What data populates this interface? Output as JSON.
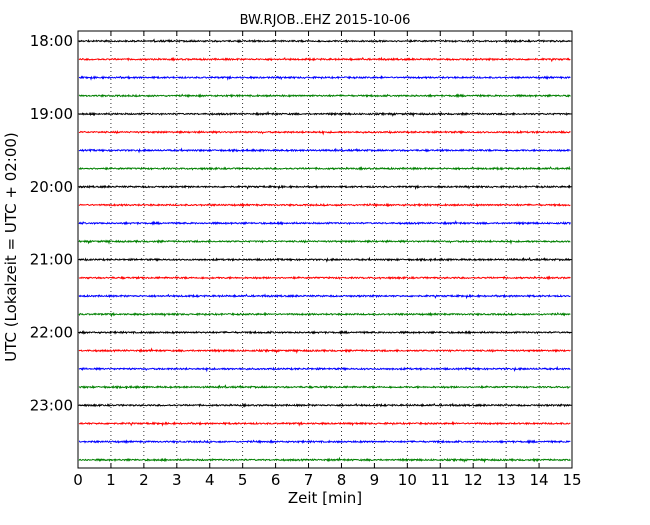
{
  "chart_data": {
    "type": "line",
    "title": "BW.RJOB..EHZ 2015-10-06",
    "xlabel": "Zeit  [min]",
    "ylabel": "UTC (Lokalzeit = UTC + 02:00)",
    "xlim": [
      0,
      15
    ],
    "x_ticks": [
      "0",
      "1",
      "2",
      "3",
      "4",
      "5",
      "6",
      "7",
      "8",
      "9",
      "10",
      "11",
      "12",
      "13",
      "14",
      "15"
    ],
    "y_ticks": [
      "18:00",
      "19:00",
      "20:00",
      "21:00",
      "22:00",
      "23:00"
    ],
    "grid": "vertical dotted lines at each minute",
    "trace_interval_minutes": 15,
    "trace_colors": [
      "#000000",
      "#ff0000",
      "#0000ff",
      "#008000"
    ],
    "series": [
      {
        "start": "18:00",
        "color": "#000000"
      },
      {
        "start": "18:15",
        "color": "#ff0000"
      },
      {
        "start": "18:30",
        "color": "#0000ff"
      },
      {
        "start": "18:45",
        "color": "#008000"
      },
      {
        "start": "19:00",
        "color": "#000000"
      },
      {
        "start": "19:15",
        "color": "#ff0000"
      },
      {
        "start": "19:30",
        "color": "#0000ff"
      },
      {
        "start": "19:45",
        "color": "#008000"
      },
      {
        "start": "20:00",
        "color": "#000000"
      },
      {
        "start": "20:15",
        "color": "#ff0000"
      },
      {
        "start": "20:30",
        "color": "#0000ff"
      },
      {
        "start": "20:45",
        "color": "#008000"
      },
      {
        "start": "21:00",
        "color": "#000000"
      },
      {
        "start": "21:15",
        "color": "#ff0000"
      },
      {
        "start": "21:30",
        "color": "#0000ff"
      },
      {
        "start": "21:45",
        "color": "#008000"
      },
      {
        "start": "22:00",
        "color": "#000000"
      },
      {
        "start": "22:15",
        "color": "#ff0000"
      },
      {
        "start": "22:30",
        "color": "#0000ff"
      },
      {
        "start": "22:45",
        "color": "#008000"
      },
      {
        "start": "23:00",
        "color": "#000000"
      },
      {
        "start": "23:15",
        "color": "#ff0000"
      },
      {
        "start": "23:30",
        "color": "#0000ff"
      },
      {
        "start": "23:45",
        "color": "#008000"
      }
    ]
  }
}
